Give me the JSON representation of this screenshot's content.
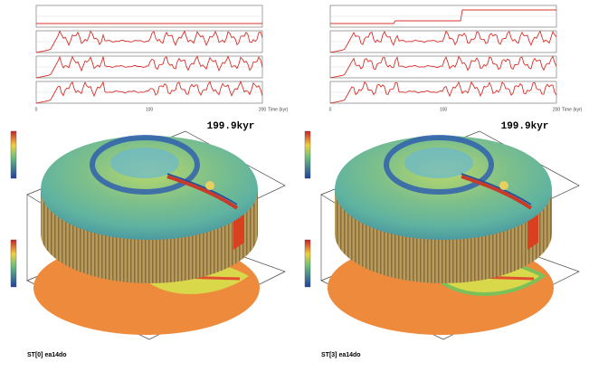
{
  "panels": [
    {
      "timestamp": "199.9kyr",
      "caption": "ST[0] ea14do",
      "time_ticks": [
        "0",
        "100",
        "200"
      ],
      "time_label": "Time (kyr)"
    },
    {
      "timestamp": "199.9kyr",
      "caption": "ST[3] ea14do",
      "time_ticks": [
        "0",
        "100",
        "200"
      ],
      "time_label": "Time (kyr)"
    }
  ]
}
